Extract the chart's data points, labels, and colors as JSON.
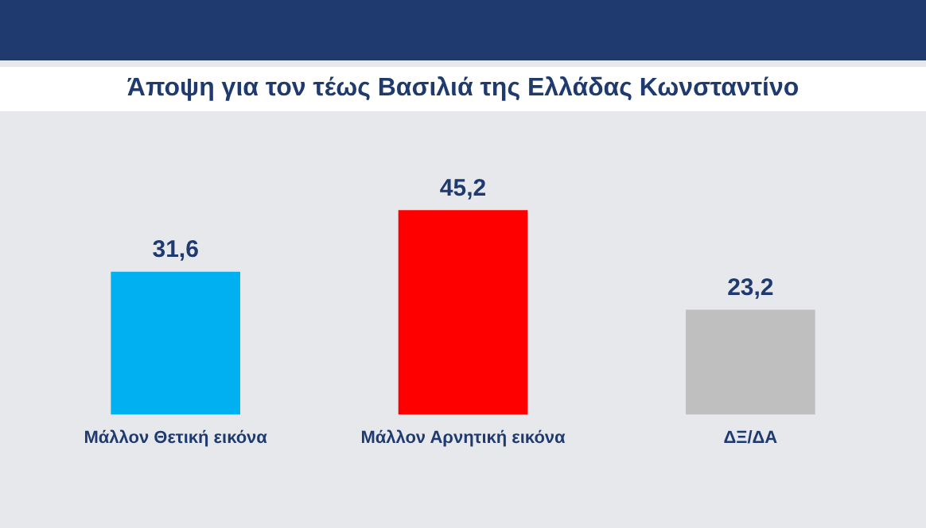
{
  "chart_data": {
    "type": "bar",
    "title": "Άποψη για τον τέως Βασιλιά της Ελλάδας Κωνσταντίνο",
    "categories": [
      "Μάλλον Θετική εικόνα",
      "Μάλλον Αρνητική εικόνα",
      "ΔΞ/ΔΑ"
    ],
    "values": [
      31.6,
      45.2,
      23.2
    ],
    "colors": [
      "#00b0f0",
      "#ff0000",
      "#bfbfbf"
    ],
    "value_labels": [
      "31,6",
      "45,2",
      "23,2"
    ],
    "grid": false,
    "legend": false
  }
}
